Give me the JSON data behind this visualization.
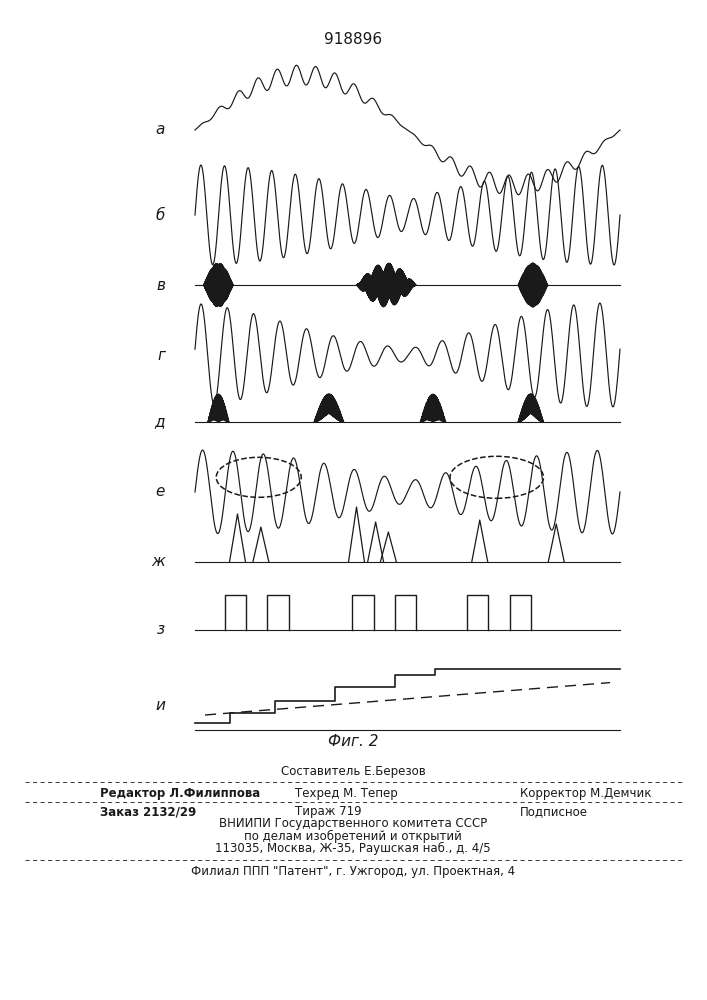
{
  "title": "918896",
  "fig_label": "Фиг. 2",
  "row_labels": [
    "а",
    "б",
    "в",
    "г",
    "д",
    "е",
    "ж",
    "з",
    "и"
  ],
  "line_color": "#1a1a1a",
  "footer_line0": "Составитель Е.Березов",
  "footer_line1_left": "Редактор Л.Филиппова",
  "footer_line1_mid": "Техред М. Тепер",
  "footer_line1_right": "Корректор М.Демчик",
  "footer_line2_left": "Заказ 2132/29",
  "footer_line2_mid": "Тираж 719",
  "footer_line2_right": "Подписное",
  "footer_line3": "ВНИИПИ Государственного комитета СССР",
  "footer_line4": "по делам изобретений и открытий",
  "footer_line5": "113035, Москва, Ж-35, Раушская наб., д. 4/5",
  "footer_line6": "Филиал ППП \"Патент\", г. Ужгород, ул. Проектная, 4"
}
